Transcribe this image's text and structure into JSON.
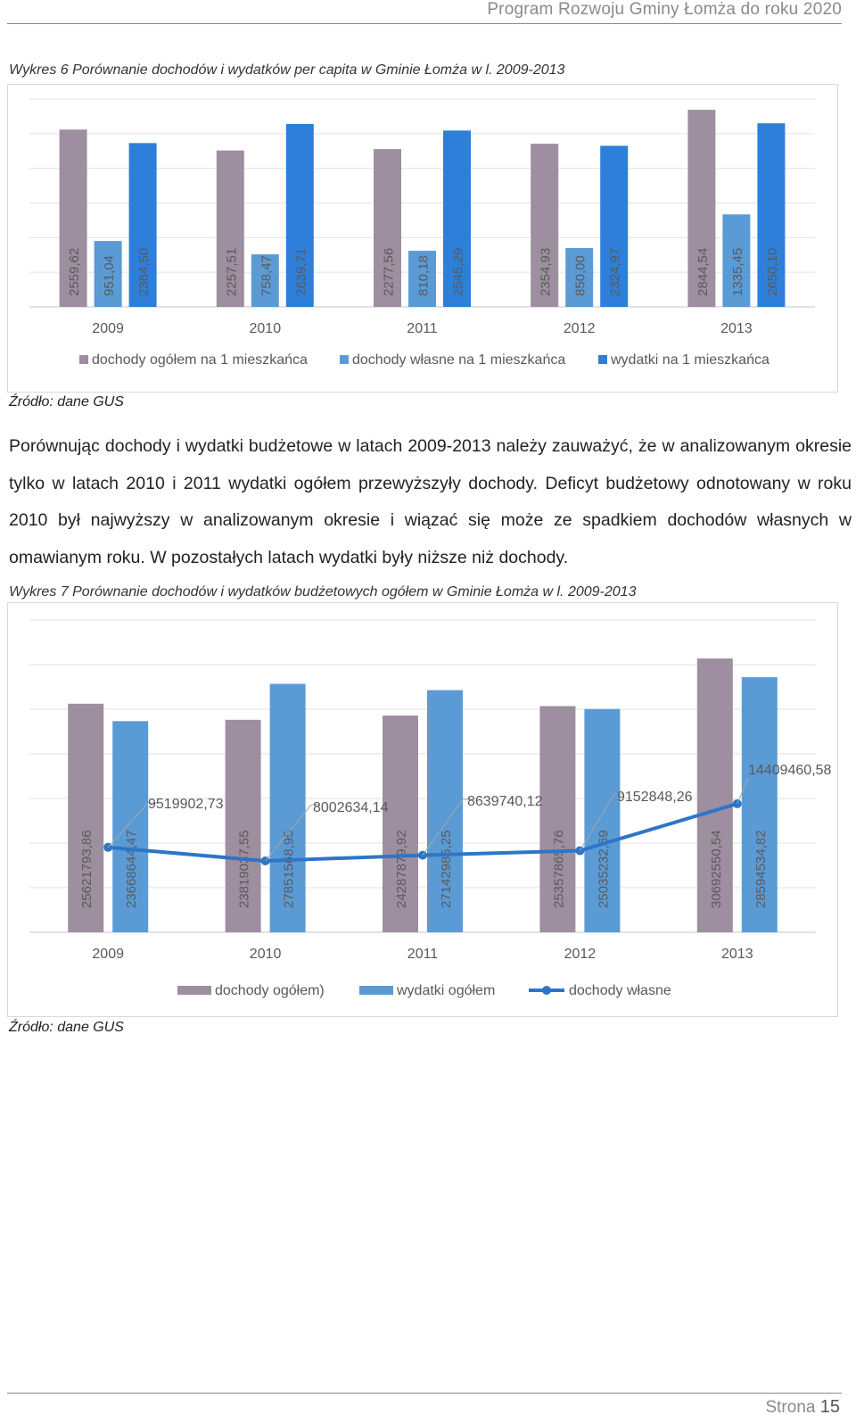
{
  "header": {
    "title": "Program Rozwoju Gminy Łomża do roku 2020"
  },
  "chart1": {
    "caption": "Wykres 6 Porównanie dochodów i wydatków per capita w Gminie Łomża w l. 2009-2013",
    "source": "Źródło: dane GUS"
  },
  "paragraph": "Porównując dochody i wydatki budżetowe w latach 2009-2013 należy zauważyć, że w analizowanym okresie tylko w latach 2010 i 2011 wydatki ogółem przewyższyły dochody. Deficyt budżetowy odnotowany w roku 2010 był najwyższy w analizowanym okresie i wiązać się może ze spadkiem dochodów własnych w omawianym roku. W pozostałych latach wydatki były niższe niż dochody.",
  "chart2": {
    "caption": "Wykres 7 Porównanie dochodów i wydatków budżetowych ogółem w Gminie Łomża  w l. 2009-2013",
    "source": "Źródło: dane GUS"
  },
  "footer": {
    "page_label": "Strona",
    "page_number": "15"
  },
  "colors": {
    "grey_mauve": "#9d8f9f",
    "light_blue": "#5b9bd5",
    "blue": "#2e7fd9",
    "line_blue": "#2e75c8"
  },
  "chart_data": [
    {
      "type": "bar",
      "categories": [
        "2009",
        "2010",
        "2011",
        "2012",
        "2013"
      ],
      "series": [
        {
          "name": "dochody ogółem na 1 mieszkańca",
          "values": [
            2559.62,
            2257.51,
            2277.56,
            2354.93,
            2844.54
          ],
          "labels": [
            "2559,62",
            "2257,51",
            "2277,56",
            "2354,93",
            "2844,54"
          ],
          "color": "#9d8f9f"
        },
        {
          "name": "dochody własne na 1 mieszkańca",
          "values": [
            951.04,
            758.47,
            810.18,
            850.0,
            1335.45
          ],
          "labels": [
            "951,04",
            "758,47",
            "810,18",
            "850,00",
            "1335,45"
          ],
          "color": "#5b9bd5"
        },
        {
          "name": "wydatki na 1 mieszkańca",
          "values": [
            2364.5,
            2639.71,
            2545.29,
            2324.97,
            2650.1
          ],
          "labels": [
            "2364,50",
            "2639,71",
            "2545,29",
            "2324,97",
            "2650,10"
          ],
          "color": "#2e7fd9"
        }
      ],
      "grid": true,
      "legend": "bottom"
    },
    {
      "type": "bar",
      "categories": [
        "2009",
        "2010",
        "2011",
        "2012",
        "2013"
      ],
      "series": [
        {
          "name": "dochody ogółem)",
          "kind": "bar",
          "values": [
            25621793.86,
            23819037.55,
            24287879.92,
            25357865.76,
            30692550.54
          ],
          "labels": [
            "25621793,86",
            "23819037,55",
            "24287879,92",
            "25357865,76",
            "30692550,54"
          ],
          "color": "#9d8f9f"
        },
        {
          "name": "wydatki ogółem",
          "kind": "bar",
          "values": [
            23668644.47,
            27851568.95,
            27142985.25,
            25035232.69,
            28594534.82
          ],
          "labels": [
            "23668644,47",
            "27851568,95",
            "27142985,25",
            "25035232,69",
            "28594534,82"
          ],
          "color": "#5b9bd5"
        },
        {
          "name": "dochody własne",
          "kind": "line",
          "values": [
            9519902.73,
            8002634.14,
            8639740.12,
            9152848.26,
            14409460.58
          ],
          "labels": [
            "9519902,73",
            "8002634,14",
            "8639740,12",
            "9152848,26",
            "14409460,58"
          ],
          "color": "#2e75c8"
        }
      ],
      "grid": true,
      "legend": "bottom"
    }
  ]
}
